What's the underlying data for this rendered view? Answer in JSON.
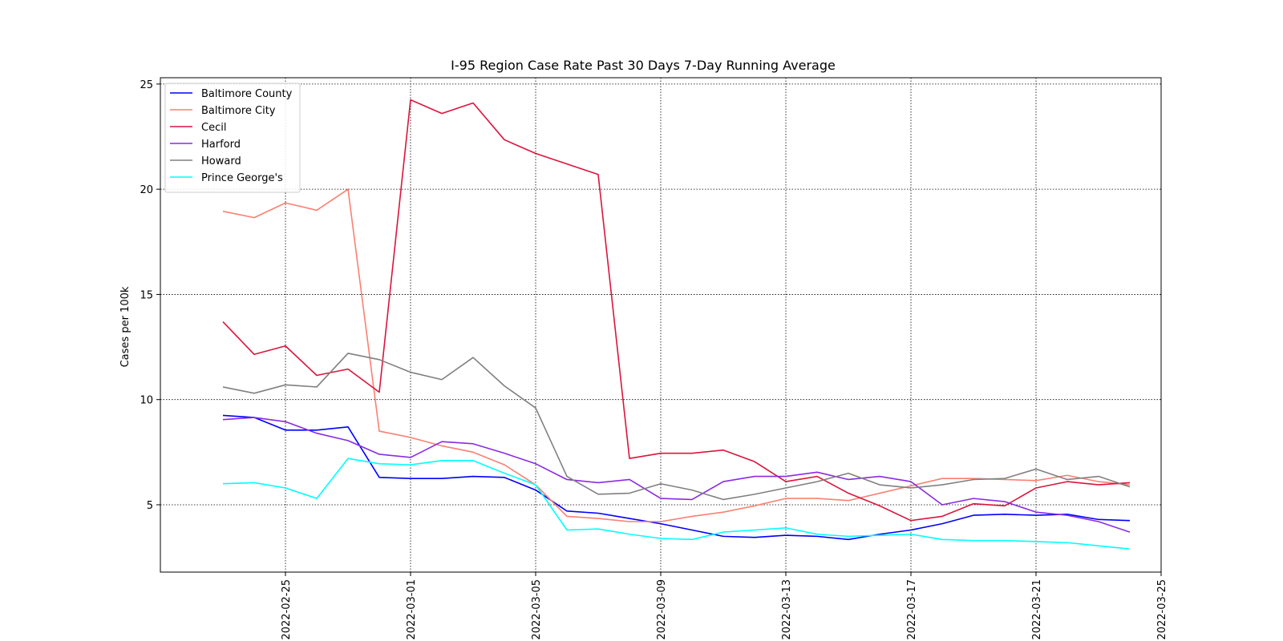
{
  "chart_data": {
    "type": "line",
    "title": "I-95 Region Case Rate  Past 30 Days 7-Day Running Average",
    "xlabel": "",
    "ylabel": "Cases per 100k",
    "x": [
      "2022-02-23",
      "2022-02-24",
      "2022-02-25",
      "2022-02-26",
      "2022-02-27",
      "2022-02-28",
      "2022-03-01",
      "2022-03-02",
      "2022-03-03",
      "2022-03-04",
      "2022-03-05",
      "2022-03-06",
      "2022-03-07",
      "2022-03-08",
      "2022-03-09",
      "2022-03-10",
      "2022-03-11",
      "2022-03-12",
      "2022-03-13",
      "2022-03-14",
      "2022-03-15",
      "2022-03-16",
      "2022-03-17",
      "2022-03-18",
      "2022-03-19",
      "2022-03-20",
      "2022-03-21",
      "2022-03-22",
      "2022-03-23",
      "2022-03-24"
    ],
    "xlim": [
      "2022-02-21",
      "2022-03-25"
    ],
    "ylim": [
      1.8,
      25.3
    ],
    "x_ticks": [
      "2022-02-25",
      "2022-03-01",
      "2022-03-05",
      "2022-03-09",
      "2022-03-13",
      "2022-03-17",
      "2022-03-21",
      "2022-03-25"
    ],
    "y_ticks": [
      5,
      10,
      15,
      20,
      25
    ],
    "grid": true,
    "legend_position": "top-left",
    "series": [
      {
        "name": "Baltimore County",
        "color": "#0000ff",
        "values": [
          9.25,
          9.15,
          8.55,
          8.55,
          8.7,
          6.3,
          6.25,
          6.25,
          6.35,
          6.3,
          5.7,
          4.7,
          4.6,
          4.35,
          4.1,
          3.8,
          3.5,
          3.45,
          3.55,
          3.5,
          3.35,
          3.6,
          3.8,
          4.1,
          4.5,
          4.55,
          4.5,
          4.55,
          4.3,
          4.25
        ]
      },
      {
        "name": "Baltimore City",
        "color": "#fa8072",
        "values": [
          18.95,
          18.65,
          19.35,
          19.0,
          20.0,
          8.5,
          8.2,
          7.8,
          7.5,
          6.9,
          5.95,
          4.45,
          4.35,
          4.2,
          4.2,
          4.45,
          4.65,
          4.95,
          5.3,
          5.3,
          5.2,
          5.55,
          5.9,
          6.25,
          6.25,
          6.2,
          6.15,
          6.4,
          6.1,
          5.95
        ]
      },
      {
        "name": "Cecil",
        "color": "#dc143c",
        "values": [
          13.7,
          12.15,
          12.55,
          11.15,
          11.45,
          10.35,
          24.25,
          23.6,
          24.1,
          22.35,
          21.7,
          21.2,
          20.7,
          7.2,
          7.45,
          7.45,
          7.6,
          7.05,
          6.1,
          6.35,
          5.55,
          4.95,
          4.25,
          4.45,
          5.05,
          4.95,
          5.8,
          6.1,
          5.95,
          6.05
        ]
      },
      {
        "name": "Harford",
        "color": "#8a2be2",
        "values": [
          9.05,
          9.15,
          8.95,
          8.4,
          8.05,
          7.4,
          7.25,
          8.0,
          7.9,
          7.45,
          6.95,
          6.2,
          6.05,
          6.2,
          5.3,
          5.25,
          6.1,
          6.35,
          6.35,
          6.55,
          6.2,
          6.35,
          6.1,
          5.0,
          5.3,
          5.15,
          4.65,
          4.5,
          4.2,
          3.7
        ]
      },
      {
        "name": "Howard",
        "color": "#808080",
        "values": [
          10.6,
          10.3,
          10.7,
          10.6,
          12.2,
          11.9,
          11.3,
          10.95,
          12.0,
          10.65,
          9.6,
          6.35,
          5.5,
          5.55,
          6.0,
          5.7,
          5.25,
          5.5,
          5.8,
          6.1,
          6.5,
          5.95,
          5.8,
          5.95,
          6.2,
          6.25,
          6.7,
          6.2,
          6.35,
          5.85
        ]
      },
      {
        "name": "Prince George's",
        "color": "#00ffff",
        "values": [
          6.0,
          6.05,
          5.8,
          5.3,
          7.2,
          6.95,
          6.9,
          7.1,
          7.1,
          6.5,
          5.95,
          3.8,
          3.85,
          3.6,
          3.4,
          3.35,
          3.7,
          3.8,
          3.9,
          3.6,
          3.5,
          3.55,
          3.6,
          3.35,
          3.3,
          3.3,
          3.25,
          3.2,
          3.05,
          2.9
        ]
      }
    ]
  }
}
